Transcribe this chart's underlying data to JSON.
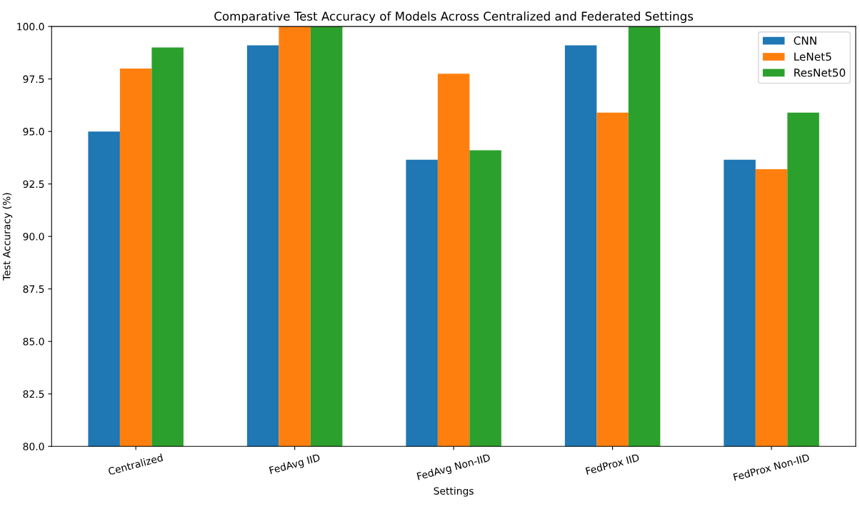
{
  "chart_data": {
    "type": "bar",
    "title": "Comparative Test Accuracy of Models Across Centralized and Federated Settings",
    "xlabel": "Settings",
    "ylabel": "Test Accuracy (%)",
    "categories": [
      "Centralized",
      "FedAvg IID",
      "FedAvg Non-IID",
      "FedProx IID",
      "FedProx Non-IID"
    ],
    "series": [
      {
        "name": "CNN",
        "color": "#1f77b4",
        "values": [
          95.0,
          99.1,
          93.65,
          99.1,
          93.65
        ]
      },
      {
        "name": "LeNet5",
        "color": "#ff7f0e",
        "values": [
          98.0,
          100.0,
          97.75,
          95.9,
          93.2
        ]
      },
      {
        "name": "ResNet50",
        "color": "#2ca02c",
        "values": [
          99.0,
          100.0,
          94.1,
          100.0,
          95.9
        ]
      }
    ],
    "ylim": [
      80,
      100
    ],
    "yticks": [
      {
        "value": 80,
        "label": "80.0"
      },
      {
        "value": 82.5,
        "label": "82.5"
      },
      {
        "value": 85,
        "label": "85.0"
      },
      {
        "value": 87.5,
        "label": "87.5"
      },
      {
        "value": 90,
        "label": "90.0"
      },
      {
        "value": 92.5,
        "label": "92.5"
      },
      {
        "value": 95,
        "label": "95.0"
      },
      {
        "value": 97.5,
        "label": "97.5"
      },
      {
        "value": 100,
        "label": "100.0"
      }
    ],
    "grid": false,
    "legend": "top right"
  }
}
